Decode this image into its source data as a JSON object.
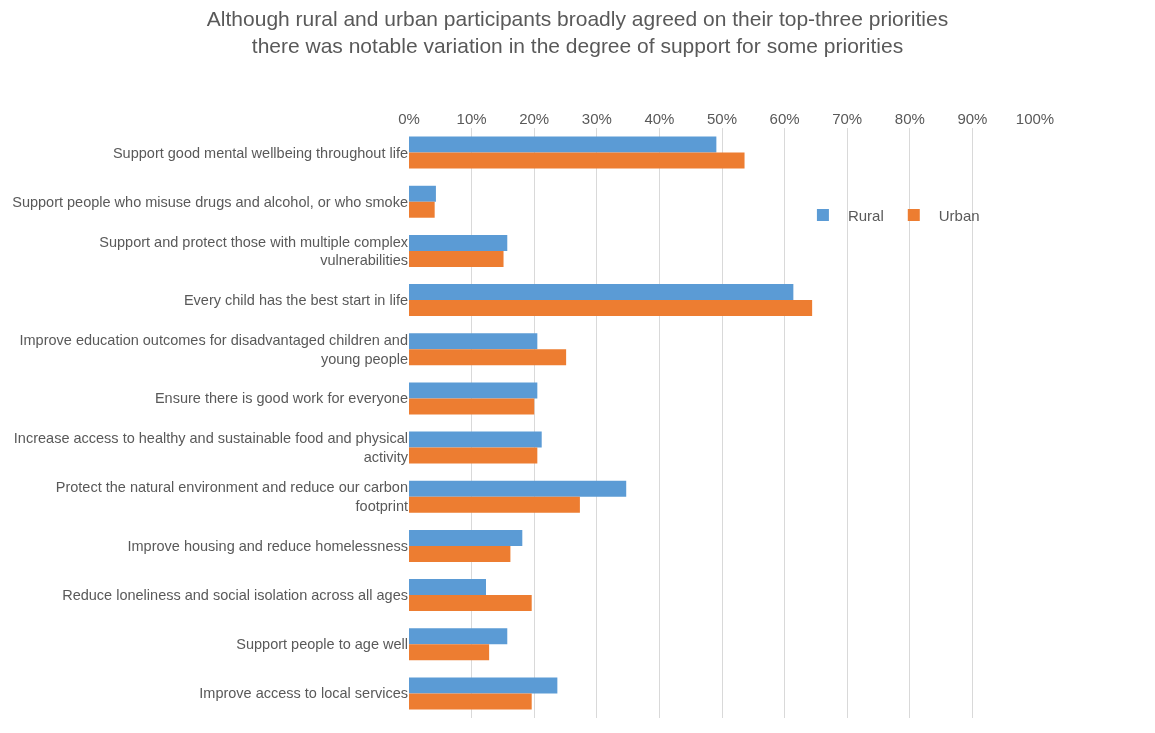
{
  "chart_data": {
    "type": "bar",
    "orientation": "horizontal",
    "title": "Although rural and urban participants broadly agreed on their top-three priorities\nthere was notable variation in the degree of support for some priorities",
    "categories": [
      "Support good mental wellbeing throughout life",
      "Support people who misuse drugs and alcohol, or who smoke",
      "Support and protect those with multiple complex vulnerabilities",
      "Every child has the best start in life",
      "Improve education outcomes for disadvantaged children and young people",
      "Ensure there is good work for everyone",
      "Increase access to healthy and sustainable food and physical activity",
      "Protect the natural environment and reduce our carbon footprint",
      "Improve housing and reduce homelessness",
      "Reduce loneliness and social isolation across all ages",
      "Support people to age well",
      "Improve access to local services"
    ],
    "series": [
      {
        "name": "Rural",
        "color": "#5b9bd5",
        "values": [
          49.1,
          4.3,
          15.7,
          61.4,
          20.5,
          20.5,
          21.2,
          34.7,
          18.1,
          12.3,
          15.7,
          23.7
        ]
      },
      {
        "name": "Urban",
        "color": "#ed7d31",
        "values": [
          53.6,
          4.1,
          15.1,
          64.4,
          25.1,
          20.0,
          20.5,
          27.3,
          16.2,
          19.6,
          12.8,
          19.6
        ]
      }
    ],
    "xlim": [
      0,
      100
    ],
    "xticks": [
      {
        "value": 0,
        "label": "0%"
      },
      {
        "value": 10,
        "label": "10%"
      },
      {
        "value": 20,
        "label": "20%"
      },
      {
        "value": 30,
        "label": "30%"
      },
      {
        "value": 40,
        "label": "40%"
      },
      {
        "value": 50,
        "label": "50%"
      },
      {
        "value": 60,
        "label": "60%"
      },
      {
        "value": 70,
        "label": "70%"
      },
      {
        "value": 80,
        "label": "80%"
      },
      {
        "value": 90,
        "label": "90%"
      },
      {
        "value": 100,
        "label": "100%"
      }
    ],
    "grid": "x",
    "legend": "top right"
  }
}
